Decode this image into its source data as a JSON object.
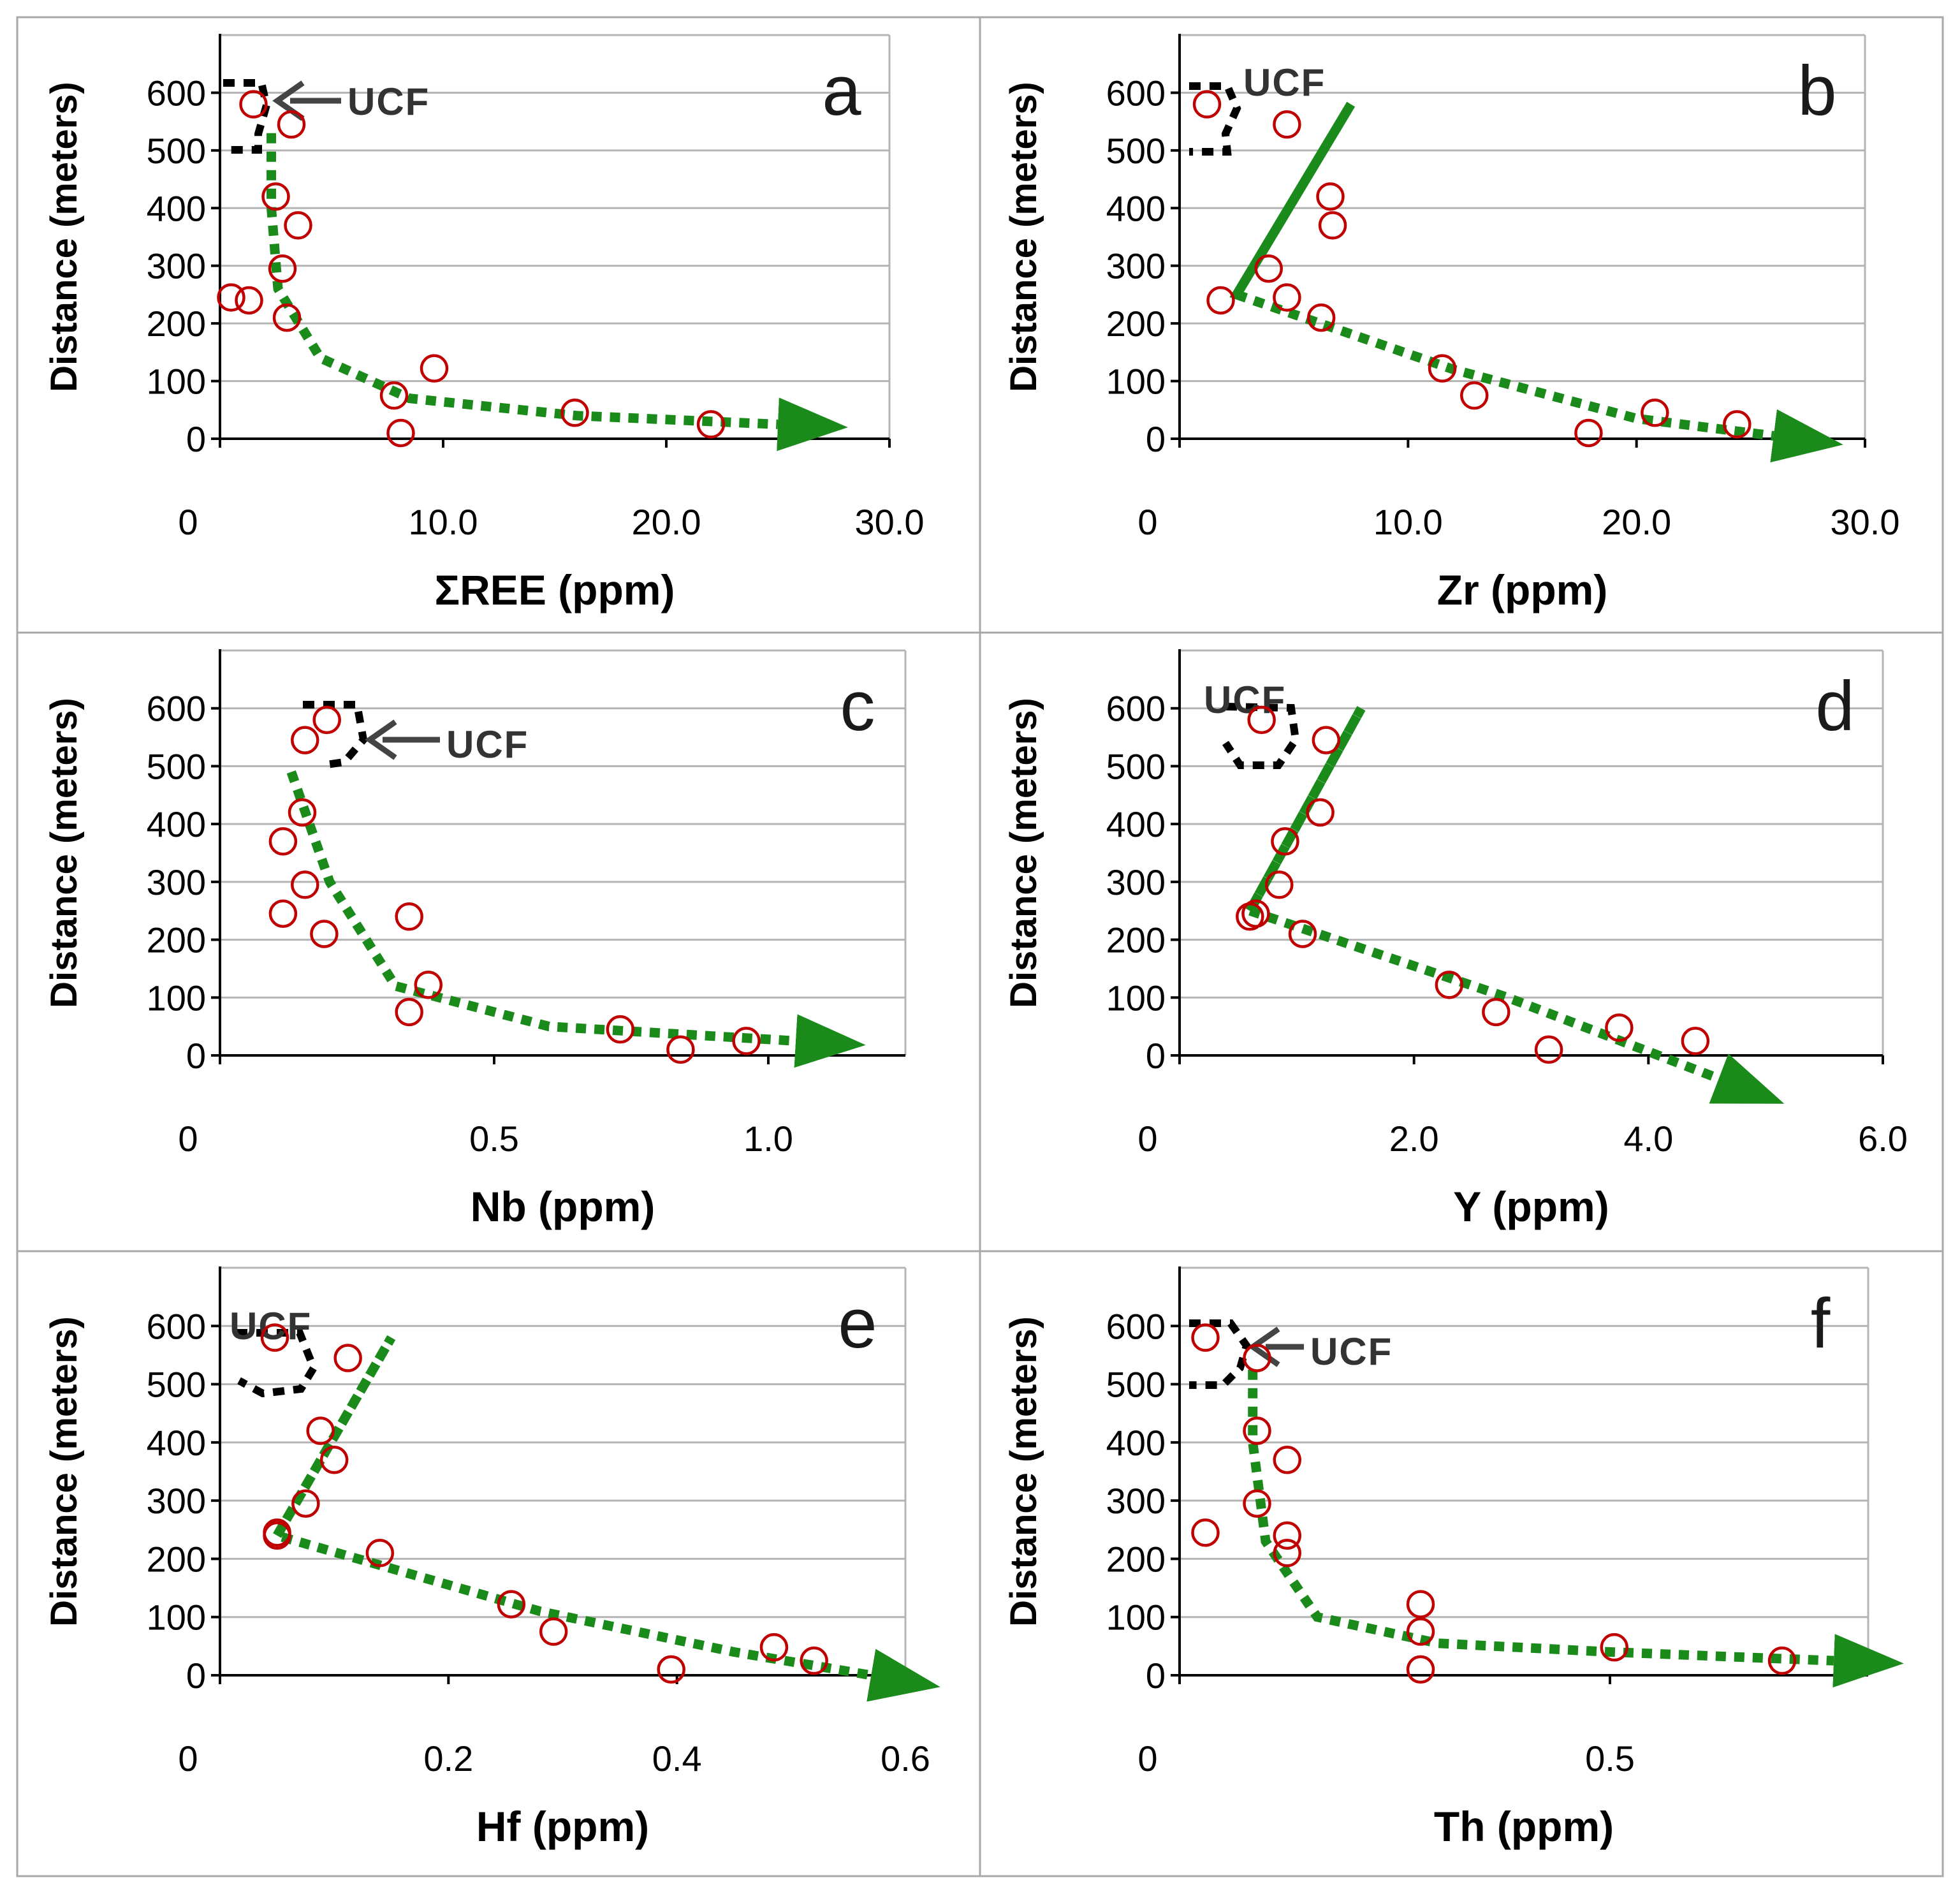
{
  "figure": {
    "colors": {
      "point": "#c00000",
      "trend": "#1a8a1a",
      "ucf_marker": "#000000",
      "ucf_arrow": "#444444",
      "grid": "#b4b4b4",
      "frame": "#a8a8a8"
    },
    "ylabel_common": "Distance (meters)"
  },
  "chart_data": [
    {
      "type": "scatter",
      "panel": "a",
      "xlabel": "ΣREE (ppm)",
      "ylabel": "Distance (meters)",
      "xlim": [
        0,
        30
      ],
      "ylim": [
        0,
        700
      ],
      "xticks": [
        0,
        10,
        20,
        30
      ],
      "xtick_labels": [
        "0",
        "10.0",
        "20.0",
        "30.0"
      ],
      "yticks": [
        0,
        100,
        200,
        300,
        400,
        500,
        600
      ],
      "ytick_labels": [
        "0",
        "100",
        "200",
        "300",
        "400",
        "500",
        "600"
      ],
      "grid": "horizontal",
      "annotation": {
        "text": "UCF",
        "arrow": true
      },
      "x": [
        1.5,
        3.2,
        2.5,
        3.5,
        2.8,
        0.5,
        1.3,
        3.0,
        7.8,
        9.6,
        8.1,
        15.9,
        22.0
      ],
      "y": [
        580,
        545,
        420,
        370,
        295,
        245,
        240,
        210,
        75,
        122,
        10,
        45,
        25
      ],
      "trend": [
        [
          2.3,
          530
        ],
        [
          2.3,
          400
        ],
        [
          2.6,
          260
        ],
        [
          4.5,
          140
        ],
        [
          8.5,
          70
        ],
        [
          16,
          40
        ],
        [
          25,
          25
        ]
      ]
    },
    {
      "type": "scatter",
      "panel": "b",
      "xlabel": "Zr (ppm)",
      "ylabel": "Distance (meters)",
      "xlim": [
        0,
        30
      ],
      "ylim": [
        0,
        700
      ],
      "xticks": [
        0,
        10,
        20,
        30
      ],
      "xtick_labels": [
        "0",
        "10.0",
        "20.0",
        "30.0"
      ],
      "yticks": [
        0,
        100,
        200,
        300,
        400,
        500,
        600
      ],
      "ytick_labels": [
        "0",
        "100",
        "200",
        "300",
        "400",
        "500",
        "600"
      ],
      "grid": "horizontal",
      "annotation": {
        "text": "UCF",
        "arrow": false
      },
      "x": [
        1.2,
        4.7,
        6.6,
        6.7,
        3.9,
        4.7,
        1.8,
        6.2,
        11.5,
        12.9,
        17.9,
        20.8,
        24.4
      ],
      "y": [
        580,
        545,
        420,
        370,
        295,
        245,
        240,
        210,
        122,
        75,
        10,
        45,
        25
      ],
      "trend": [
        [
          2.5,
          250
        ],
        [
          7.5,
          580
        ],
        [
          2.5,
          250
        ],
        [
          12,
          120
        ],
        [
          20,
          35
        ],
        [
          26,
          5
        ]
      ]
    },
    {
      "type": "scatter",
      "panel": "c",
      "xlabel": "Nb (ppm)",
      "ylabel": "Distance (meters)",
      "xlim": [
        0,
        1.25
      ],
      "ylim": [
        0,
        700
      ],
      "xticks": [
        0,
        0.5,
        1.0
      ],
      "xtick_labels": [
        "0",
        "0.5",
        "1.0"
      ],
      "yticks": [
        0,
        100,
        200,
        300,
        400,
        500,
        600
      ],
      "ytick_labels": [
        "0",
        "100",
        "200",
        "300",
        "400",
        "500",
        "600"
      ],
      "grid": "horizontal",
      "annotation": {
        "text": "UCF",
        "arrow": true
      },
      "x": [
        0.195,
        0.155,
        0.15,
        0.115,
        0.155,
        0.115,
        0.345,
        0.19,
        0.38,
        0.345,
        0.84,
        0.96,
        0.73
      ],
      "y": [
        580,
        545,
        420,
        370,
        295,
        245,
        240,
        210,
        122,
        75,
        10,
        25,
        45
      ],
      "trend": [
        [
          0.13,
          490
        ],
        [
          0.2,
          300
        ],
        [
          0.32,
          120
        ],
        [
          0.6,
          50
        ],
        [
          1.05,
          25
        ]
      ]
    },
    {
      "type": "scatter",
      "panel": "d",
      "xlabel": "Y (ppm)",
      "ylabel": "Distance (meters)",
      "xlim": [
        0,
        6
      ],
      "ylim": [
        0,
        700
      ],
      "xticks": [
        0,
        2,
        4,
        6
      ],
      "xtick_labels": [
        "0",
        "2.0",
        "4.0",
        "6.0"
      ],
      "yticks": [
        0,
        100,
        200,
        300,
        400,
        500,
        600
      ],
      "ytick_labels": [
        "0",
        "100",
        "200",
        "300",
        "400",
        "500",
        "600"
      ],
      "grid": "horizontal",
      "annotation": {
        "text": "UCF",
        "arrow": false
      },
      "x": [
        0.7,
        1.25,
        1.2,
        0.9,
        0.85,
        0.65,
        0.6,
        1.05,
        2.3,
        2.7,
        3.15,
        3.75,
        4.4
      ],
      "y": [
        580,
        545,
        420,
        370,
        295,
        245,
        240,
        210,
        122,
        75,
        10,
        48,
        25
      ],
      "trend": [
        [
          0.6,
          250
        ],
        [
          1.55,
          600
        ],
        [
          0.6,
          250
        ],
        [
          2.8,
          100
        ],
        [
          4.6,
          -40
        ]
      ]
    },
    {
      "type": "scatter",
      "panel": "e",
      "xlabel": "Hf (ppm)",
      "ylabel": "Distance (meters)",
      "xlim": [
        0,
        0.6
      ],
      "ylim": [
        0,
        700
      ],
      "xticks": [
        0,
        0.2,
        0.4,
        0.6
      ],
      "xtick_labels": [
        "0",
        "0.2",
        "0.4",
        "0.6"
      ],
      "yticks": [
        0,
        100,
        200,
        300,
        400,
        500,
        600
      ],
      "ytick_labels": [
        "0",
        "100",
        "200",
        "300",
        "400",
        "500",
        "600"
      ],
      "grid": "horizontal",
      "annotation": {
        "text": "UCF",
        "arrow": false
      },
      "x": [
        0.048,
        0.112,
        0.088,
        0.1,
        0.075,
        0.05,
        0.05,
        0.14,
        0.255,
        0.292,
        0.395,
        0.485,
        0.52
      ],
      "y": [
        580,
        545,
        420,
        370,
        295,
        245,
        240,
        210,
        122,
        75,
        10,
        48,
        25
      ],
      "trend": [
        [
          0.05,
          240
        ],
        [
          0.15,
          580
        ],
        [
          0.05,
          240
        ],
        [
          0.28,
          110
        ],
        [
          0.45,
          40
        ],
        [
          0.57,
          0
        ]
      ]
    },
    {
      "type": "scatter",
      "panel": "f",
      "xlabel": "Th (ppm)",
      "ylabel": "Distance (meters)",
      "xlim": [
        0,
        0.8
      ],
      "ylim": [
        0,
        700
      ],
      "xticks": [
        0,
        0.5
      ],
      "xtick_labels": [
        "0",
        "0.5"
      ],
      "yticks": [
        0,
        100,
        200,
        300,
        400,
        500,
        600
      ],
      "ytick_labels": [
        "0",
        "100",
        "200",
        "300",
        "400",
        "500",
        "600"
      ],
      "grid": "horizontal",
      "annotation": {
        "text": "UCF",
        "arrow": true
      },
      "x": [
        0.03,
        0.09,
        0.09,
        0.125,
        0.09,
        0.03,
        0.125,
        0.125,
        0.28,
        0.28,
        0.28,
        0.505,
        0.7
      ],
      "y": [
        580,
        545,
        420,
        370,
        295,
        245,
        240,
        210,
        122,
        75,
        10,
        48,
        25
      ],
      "trend": [
        [
          0.085,
          525
        ],
        [
          0.085,
          400
        ],
        [
          0.1,
          230
        ],
        [
          0.16,
          100
        ],
        [
          0.3,
          55
        ],
        [
          0.5,
          40
        ],
        [
          0.76,
          25
        ]
      ]
    }
  ]
}
